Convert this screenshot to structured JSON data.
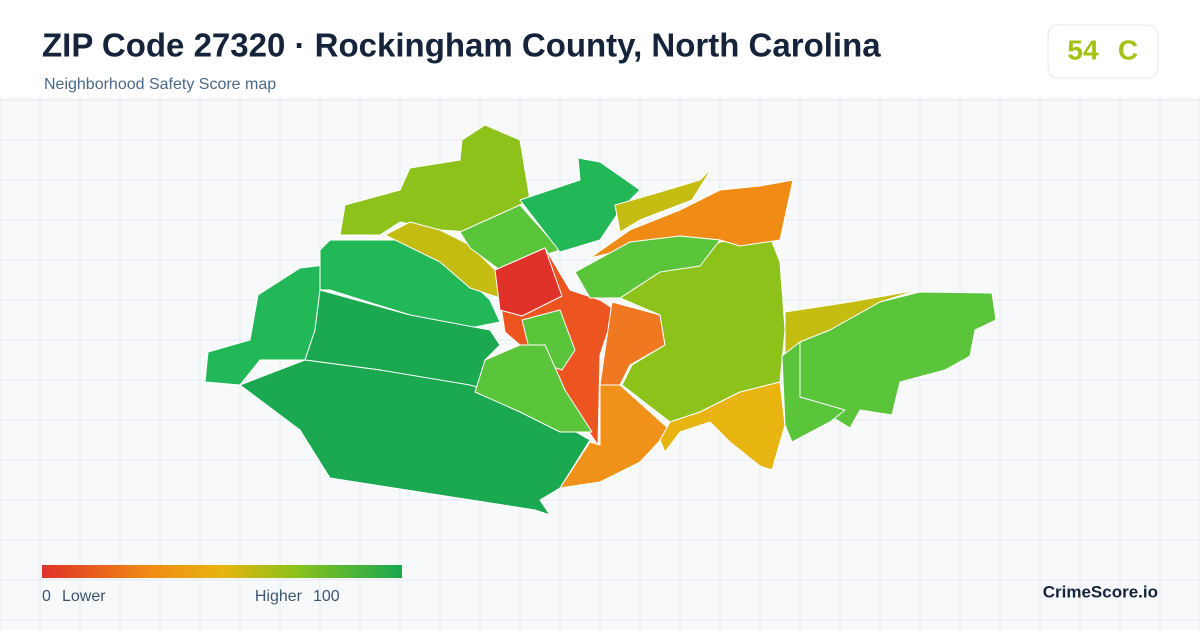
{
  "header": {
    "title": "ZIP Code 27320 · Rockingham County, North Carolina",
    "subtitle": "Neighborhood Safety Score map"
  },
  "score": {
    "value": 54,
    "grade": "C"
  },
  "legend": {
    "min": 0,
    "min_label": "Lower",
    "max_label": "Higher",
    "max": 100
  },
  "brand": "CrimeScore.io"
}
